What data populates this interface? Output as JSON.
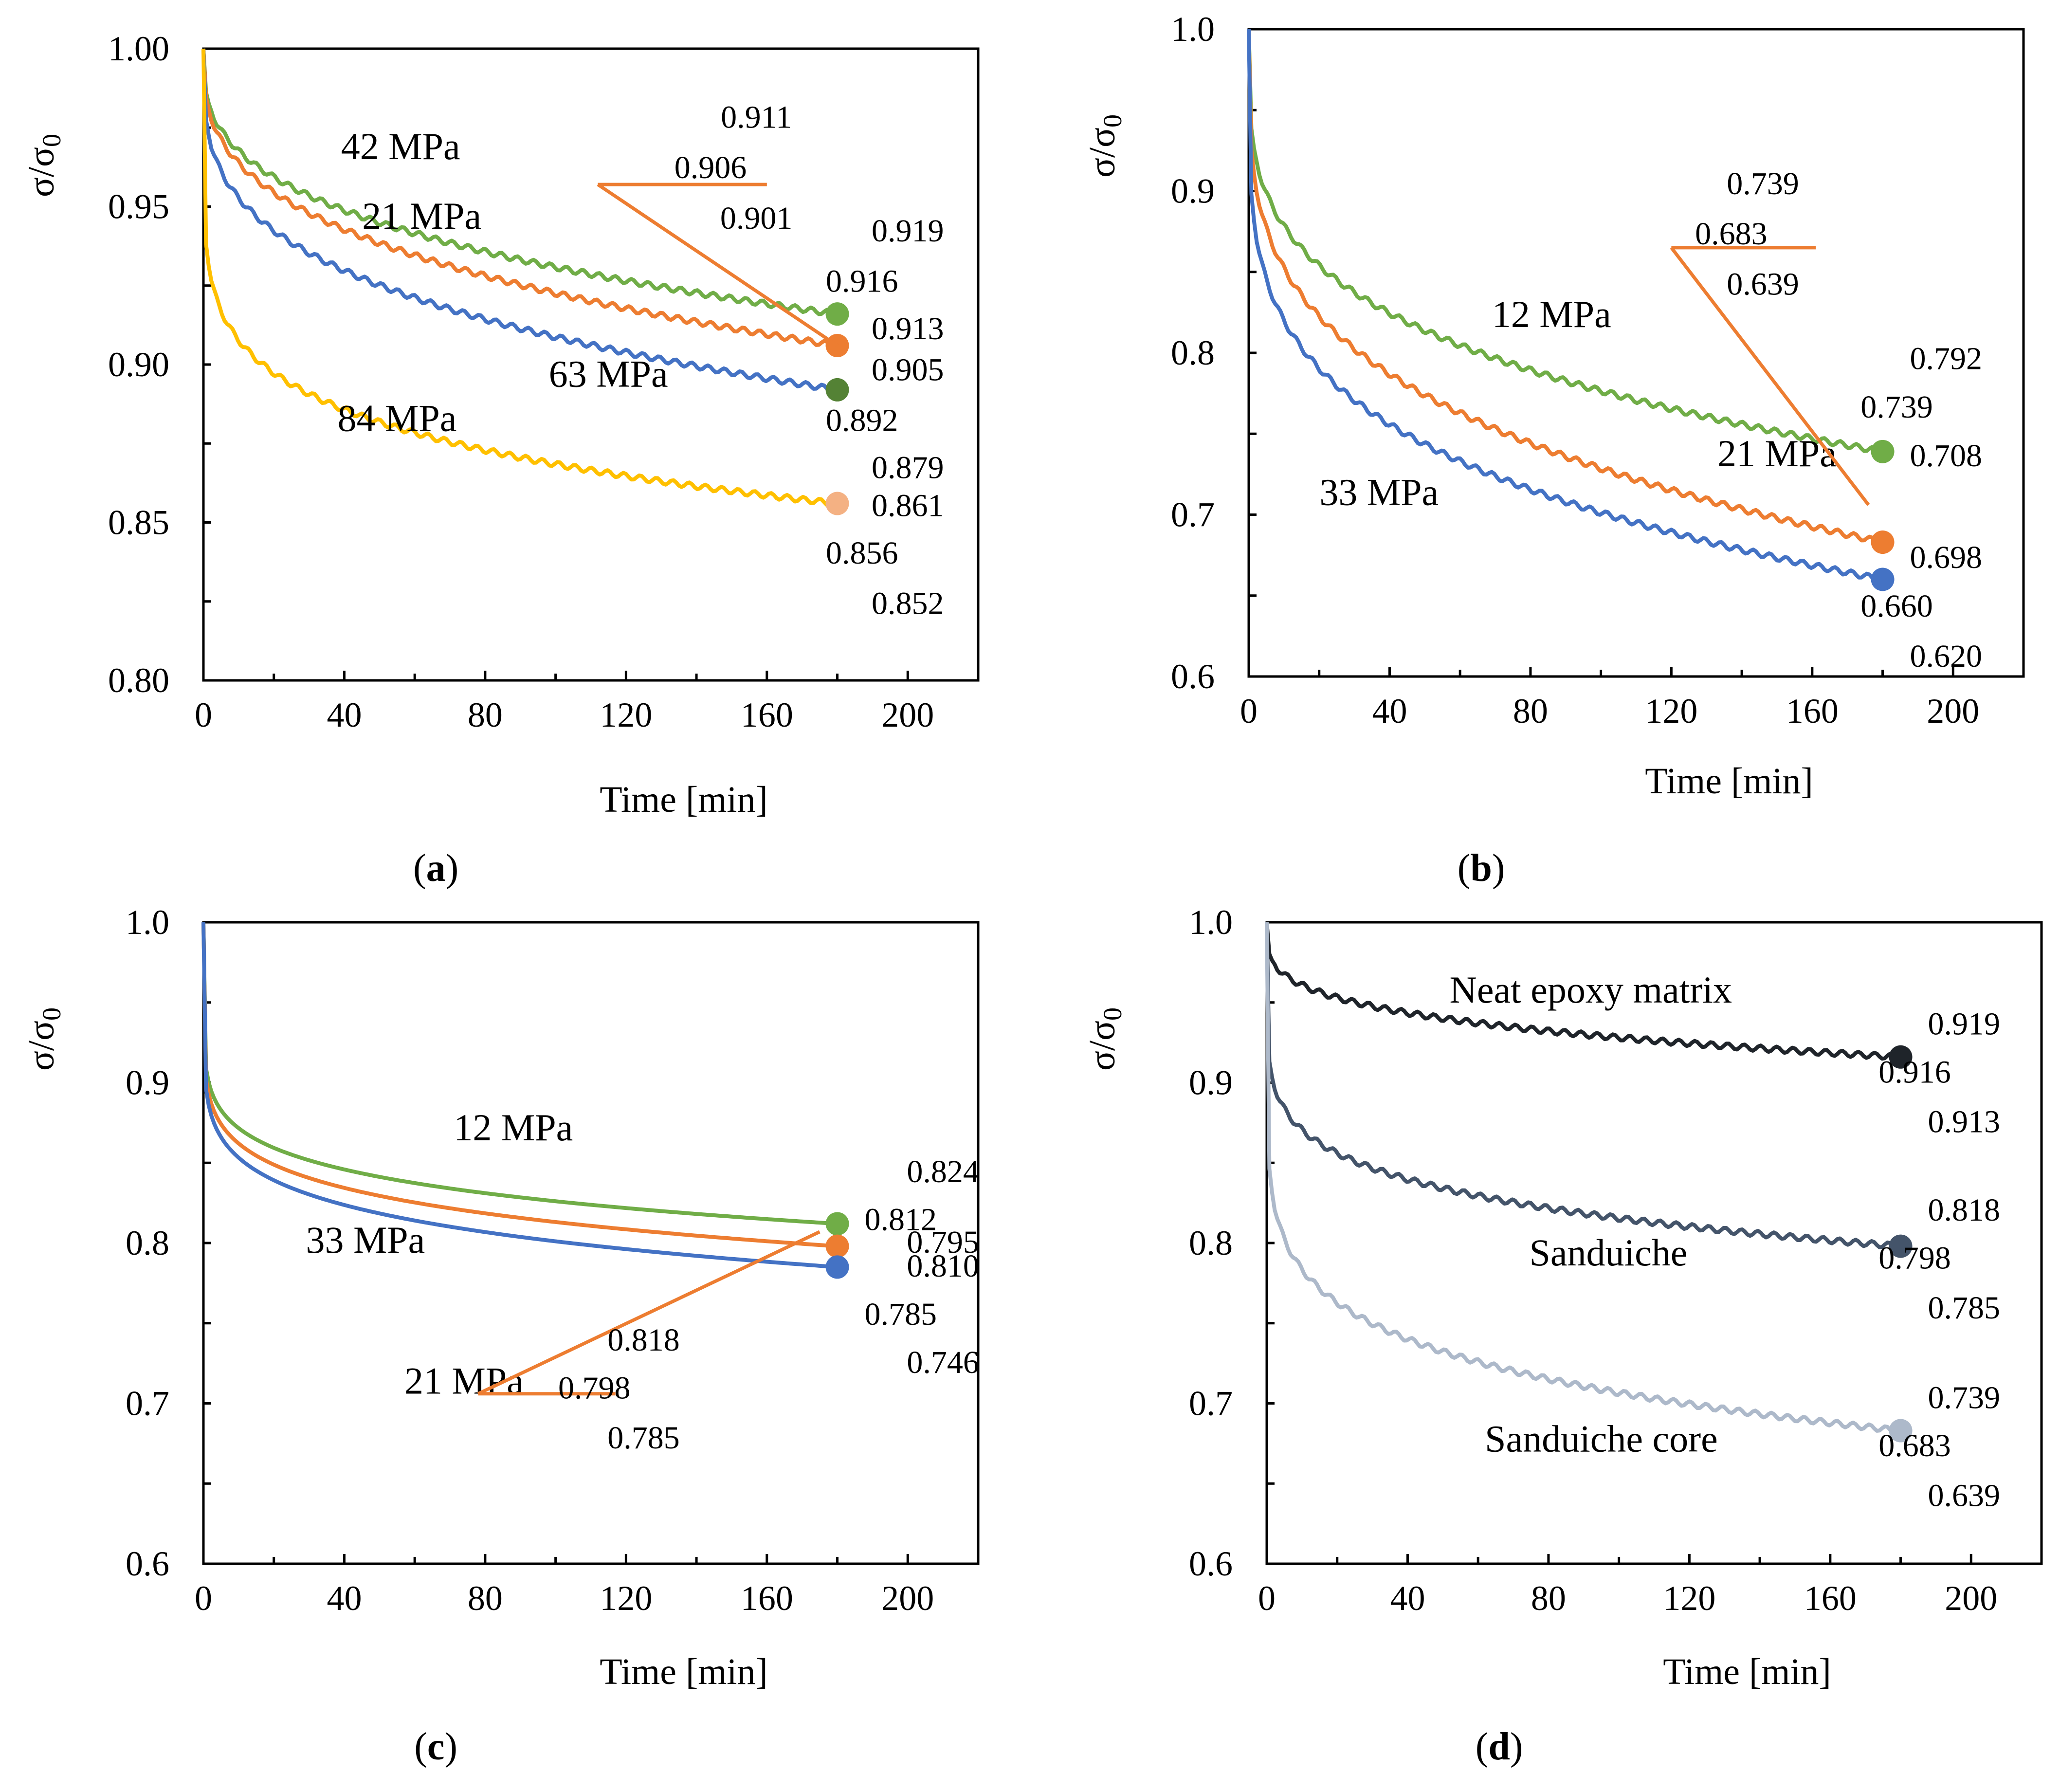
{
  "colors": {
    "green": "#70AD47",
    "orange": "#ED7D31",
    "blue": "#4472C4",
    "yellow": "#FFC000",
    "salmon": "#F4B183",
    "dark_green": "#548235",
    "black": "#1F242A",
    "slate": "#44546A",
    "light_slate": "#ADB9CA"
  },
  "chart_data": [
    {
      "type": "line",
      "panel_label": "a",
      "xlabel": "Time [min]",
      "ylabel": "σ/σ0",
      "xlim": [
        0,
        220
      ],
      "ylim": [
        0.8,
        1.0
      ],
      "xticks": [
        "0",
        "40",
        "80",
        "120",
        "160",
        "200"
      ],
      "yticks": [
        "0.80",
        "0.85",
        "0.90",
        "0.95",
        "1.00"
      ],
      "series": [
        {
          "name": "21 MPa",
          "color": "green",
          "end_x": 180,
          "end": 0.916,
          "curve_depth": 0.15,
          "label_pos": [
            62,
            0.943
          ],
          "marker_color": "green"
        },
        {
          "name": "42 MPa",
          "color": "orange",
          "end_x": 180,
          "end": 0.906,
          "curve_depth": 0.15,
          "label_pos": [
            56,
            0.965
          ],
          "marker_color": "orange"
        },
        {
          "name": "63 MPa",
          "color": "blue",
          "end_x": 180,
          "end": 0.892,
          "curve_depth": 0.13,
          "label_pos": [
            115,
            0.893
          ],
          "marker_color": "dark_green"
        },
        {
          "name": "84 MPa",
          "color": "yellow",
          "end_x": 180,
          "end": 0.856,
          "curve_depth": 0.07,
          "label_pos": [
            55,
            0.879
          ],
          "marker_color": "salmon"
        }
      ],
      "error_labels": [
        {
          "text": "0.911",
          "pos": [
            157,
            0.975
          ]
        },
        {
          "text": "0.906",
          "pos": [
            144,
            0.959
          ]
        },
        {
          "text": "0.901",
          "pos": [
            157,
            0.943
          ]
        },
        {
          "text": "0.919",
          "pos": [
            200,
            0.939
          ]
        },
        {
          "text": "0.916",
          "pos": [
            187,
            0.923
          ]
        },
        {
          "text": "0.913",
          "pos": [
            200,
            0.908
          ]
        },
        {
          "text": "0.905",
          "pos": [
            200,
            0.895
          ]
        },
        {
          "text": "0.892",
          "pos": [
            187,
            0.879
          ]
        },
        {
          "text": "0.879",
          "pos": [
            200,
            0.864
          ]
        },
        {
          "text": "0.861",
          "pos": [
            200,
            0.852
          ]
        },
        {
          "text": "0.856",
          "pos": [
            187,
            0.837
          ]
        },
        {
          "text": "0.852",
          "pos": [
            200,
            0.821
          ]
        }
      ],
      "callout": {
        "color": "orange",
        "bar": [
          112,
          160,
          0.957
        ],
        "line": [
          [
            112,
            0.957
          ],
          [
            180,
            0.906
          ]
        ]
      }
    },
    {
      "type": "line",
      "panel_label": "b",
      "xlabel": "Time [min]",
      "ylabel": "σ/σ0",
      "xlim": [
        0,
        220
      ],
      "ylim": [
        0.6,
        1.0
      ],
      "xticks": [
        "0",
        "40",
        "80",
        "120",
        "160",
        "200"
      ],
      "yticks": [
        "0.6",
        "0.7",
        "0.8",
        "0.9",
        "1.0"
      ],
      "series": [
        {
          "name": "12 MPa",
          "color": "green",
          "end_x": 180,
          "end": 0.739,
          "curve_depth": 0.12,
          "label_pos": [
            86,
            0.816
          ],
          "marker_color": "green"
        },
        {
          "name": "21 MPa",
          "color": "orange",
          "end_x": 180,
          "end": 0.683,
          "curve_depth": 0.12,
          "label_pos": [
            150,
            0.73
          ],
          "marker_color": "orange"
        },
        {
          "name": "33 MPa",
          "color": "blue",
          "end_x": 180,
          "end": 0.66,
          "curve_depth": 0.1,
          "label_pos": [
            37,
            0.706
          ],
          "marker_color": "blue"
        }
      ],
      "error_labels": [
        {
          "text": "0.739",
          "pos": [
            146,
            0.898
          ]
        },
        {
          "text": "0.683",
          "pos": [
            137,
            0.867
          ]
        },
        {
          "text": "0.639",
          "pos": [
            146,
            0.836
          ]
        },
        {
          "text": "0.792",
          "pos": [
            198,
            0.79
          ]
        },
        {
          "text": "0.739",
          "pos": [
            184,
            0.76
          ]
        },
        {
          "text": "0.708",
          "pos": [
            198,
            0.73
          ]
        },
        {
          "text": "0.698",
          "pos": [
            198,
            0.667
          ]
        },
        {
          "text": "0.660",
          "pos": [
            184,
            0.637
          ]
        },
        {
          "text": "0.620",
          "pos": [
            198,
            0.606
          ]
        }
      ],
      "callout": {
        "color": "orange",
        "bar": [
          120,
          161,
          0.865
        ],
        "line": [
          [
            120,
            0.865
          ],
          [
            176,
            0.706
          ]
        ]
      }
    },
    {
      "type": "line",
      "panel_label": "c",
      "xlabel": "Time [min]",
      "ylabel": "σ/σ0",
      "xlim": [
        0,
        220
      ],
      "ylim": [
        0.6,
        1.0
      ],
      "xticks": [
        "0",
        "40",
        "80",
        "120",
        "160",
        "200"
      ],
      "yticks": [
        "0.6",
        "0.7",
        "0.8",
        "0.9",
        "1.0"
      ],
      "series": [
        {
          "name": "12 MPa",
          "color": "green",
          "end_x": 180,
          "end": 0.812,
          "curve_depth": 0.06,
          "label_pos": [
            88,
            0.864
          ],
          "marker_color": "green"
        },
        {
          "name": "21 MPa",
          "color": "orange",
          "end_x": 180,
          "end": 0.798,
          "curve_depth": 0.06,
          "label_pos": [
            74,
            0.706
          ],
          "marker_color": "orange"
        },
        {
          "name": "33 MPa",
          "color": "blue",
          "end_x": 180,
          "end": 0.785,
          "curve_depth": 0.06,
          "label_pos": [
            46,
            0.794
          ],
          "marker_color": "blue"
        }
      ],
      "error_labels": [
        {
          "text": "0.824",
          "pos": [
            210,
            0.838
          ]
        },
        {
          "text": "0.812",
          "pos": [
            198,
            0.808
          ]
        },
        {
          "text": "0.795",
          "pos": [
            210,
            0.794
          ]
        },
        {
          "text": "0.810",
          "pos": [
            210,
            0.779
          ]
        },
        {
          "text": "0.785",
          "pos": [
            198,
            0.749
          ]
        },
        {
          "text": "0.746",
          "pos": [
            210,
            0.719
          ]
        },
        {
          "text": "0.818",
          "pos": [
            125,
            0.733
          ]
        },
        {
          "text": "0.798",
          "pos": [
            111,
            0.703
          ]
        },
        {
          "text": "0.785",
          "pos": [
            125,
            0.672
          ]
        }
      ],
      "callout": {
        "color": "orange",
        "bar": [
          78,
          117,
          0.706
        ],
        "line": [
          [
            78,
            0.706
          ],
          [
            175,
            0.807
          ]
        ]
      }
    },
    {
      "type": "line",
      "panel_label": "d",
      "xlabel": "Time [min]",
      "ylabel": "σ/σ0",
      "xlim": [
        0,
        220
      ],
      "ylim": [
        0.6,
        1.0
      ],
      "xticks": [
        "0",
        "40",
        "80",
        "120",
        "160",
        "200"
      ],
      "yticks": [
        "0.6",
        "0.7",
        "0.8",
        "0.9",
        "1.0"
      ],
      "series": [
        {
          "name": "Neat epoxy matrix",
          "color": "black",
          "end_x": 180,
          "end": 0.916,
          "curve_depth": 0.12,
          "label_pos": [
            92,
            0.95
          ],
          "marker_color": "black"
        },
        {
          "name": "Sanduiche",
          "color": "slate",
          "end_x": 180,
          "end": 0.798,
          "curve_depth": 0.07,
          "label_pos": [
            97,
            0.786
          ],
          "marker_color": "slate"
        },
        {
          "name": "Sanduiche core",
          "color": "light_slate",
          "end_x": 180,
          "end": 0.683,
          "curve_depth": 0.06,
          "label_pos": [
            95,
            0.67
          ],
          "marker_color": "light_slate"
        }
      ],
      "error_labels": [
        {
          "text": "0.919",
          "pos": [
            198,
            0.93
          ]
        },
        {
          "text": "0.916",
          "pos": [
            184,
            0.9
          ]
        },
        {
          "text": "0.913",
          "pos": [
            198,
            0.869
          ]
        },
        {
          "text": "0.818",
          "pos": [
            198,
            0.814
          ]
        },
        {
          "text": "0.798",
          "pos": [
            184,
            0.784
          ]
        },
        {
          "text": "0.785",
          "pos": [
            198,
            0.753
          ]
        },
        {
          "text": "0.739",
          "pos": [
            198,
            0.697
          ]
        },
        {
          "text": "0.683",
          "pos": [
            184,
            0.667
          ]
        },
        {
          "text": "0.639",
          "pos": [
            198,
            0.636
          ]
        }
      ],
      "callout": null
    }
  ]
}
